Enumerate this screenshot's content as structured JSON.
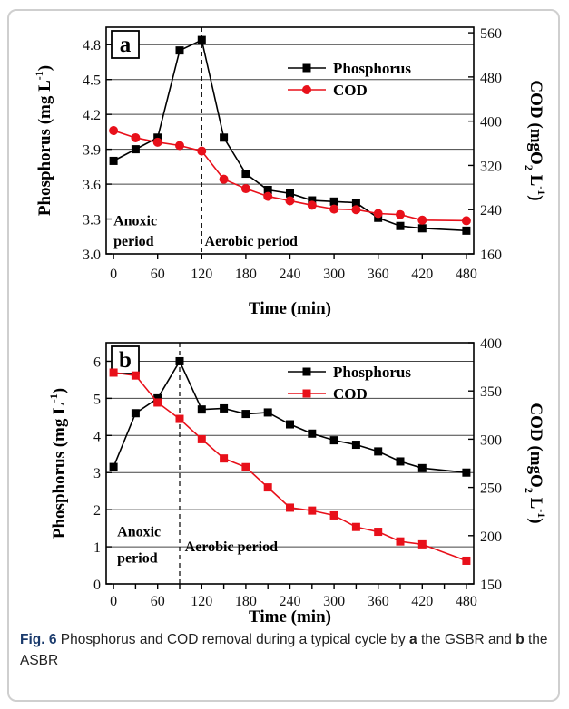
{
  "figure": {
    "caption_label": "Fig. 6",
    "caption_parts": [
      " Phosphorus and COD removal during a typical cycle by ",
      "a",
      " the GSBR and ",
      "b",
      " the ASBR"
    ]
  },
  "chart_data": [
    {
      "type": "line",
      "panel_label": "a",
      "xlabel": "Time (min)",
      "ylabel": "Phosphorus (mg L",
      "ylabel_sup": "-1",
      "ylabel_close": ")",
      "y2label": "COD (mgO",
      "y2label_sub": "2",
      "y2label_mid": " L",
      "y2label_sup": "-1",
      "y2label_close": ")",
      "xlim": [
        -10,
        490
      ],
      "ylim": [
        3.0,
        4.95
      ],
      "y2lim": [
        160,
        570
      ],
      "xticks": [
        0,
        60,
        120,
        180,
        240,
        300,
        360,
        420,
        480
      ],
      "yticks": [
        3.0,
        3.3,
        3.6,
        3.9,
        4.2,
        4.5,
        4.8
      ],
      "y2ticks": [
        160,
        240,
        320,
        400,
        480,
        560
      ],
      "grid": "horizontal",
      "legend": "top-right",
      "divider_x": 120,
      "annotations": [
        {
          "text": "Anoxic",
          "x": 0,
          "y": 3.245
        },
        {
          "text": "period",
          "x": 0,
          "y": 3.07
        },
        {
          "text": "Aerobic period",
          "x": 124,
          "y": 3.07
        }
      ],
      "series": [
        {
          "name": "Phosphorus",
          "axis": "left",
          "marker": "square",
          "color": "#000000",
          "x": [
            0,
            30,
            60,
            90,
            120,
            150,
            180,
            210,
            240,
            270,
            300,
            330,
            360,
            390,
            420,
            480
          ],
          "y": [
            3.8,
            3.9,
            4.0,
            4.75,
            4.84,
            4.0,
            3.69,
            3.55,
            3.52,
            3.46,
            3.45,
            3.44,
            3.31,
            3.24,
            3.22,
            3.2
          ]
        },
        {
          "name": "COD",
          "axis": "right",
          "marker": "circle",
          "color": "#e8101a",
          "x": [
            0,
            30,
            60,
            90,
            120,
            150,
            180,
            210,
            240,
            270,
            300,
            330,
            360,
            390,
            420,
            480
          ],
          "y": [
            383,
            370,
            362,
            356,
            346,
            295,
            278,
            264,
            256,
            248,
            241,
            240,
            233,
            231,
            221,
            220
          ]
        }
      ]
    },
    {
      "type": "line",
      "panel_label": "b",
      "xlabel": "Time (min)",
      "ylabel": "Phosphorus (mg L",
      "ylabel_sup": "-1",
      "ylabel_close": ")",
      "y2label": "COD (mgO",
      "y2label_sub": "2",
      "y2label_mid": " L",
      "y2label_sup": "-1",
      "y2label_close": ")",
      "xlim": [
        -10,
        490
      ],
      "ylim": [
        0,
        6.5
      ],
      "y2lim": [
        150,
        400
      ],
      "xticks": [
        0,
        30,
        60,
        90,
        120,
        150,
        180,
        210,
        240,
        270,
        300,
        330,
        360,
        390,
        420,
        450,
        480
      ],
      "xtick_labels": [
        "0",
        "",
        "60",
        "",
        "120",
        "",
        "180",
        "",
        "240",
        "",
        "300",
        "",
        "360",
        "",
        "420",
        "",
        "480"
      ],
      "yticks": [
        0,
        1,
        2,
        3,
        4,
        5,
        6
      ],
      "y2ticks": [
        150,
        200,
        250,
        300,
        350,
        400
      ],
      "grid": "horizontal",
      "legend": "top-right",
      "divider_x": 90,
      "annotations": [
        {
          "text": "Anoxic",
          "x": 5,
          "y": 1.28
        },
        {
          "text": "period",
          "x": 5,
          "y": 0.58
        },
        {
          "text": "Aerobic period",
          "x": 97,
          "y": 0.88
        }
      ],
      "series": [
        {
          "name": "Phosphorus",
          "axis": "left",
          "marker": "square",
          "color": "#000000",
          "x": [
            0,
            30,
            60,
            90,
            120,
            150,
            180,
            210,
            240,
            270,
            300,
            330,
            360,
            390,
            420,
            480
          ],
          "y": [
            3.15,
            4.6,
            5.0,
            6.0,
            4.7,
            4.73,
            4.58,
            4.62,
            4.3,
            4.05,
            3.87,
            3.75,
            3.57,
            3.3,
            3.12,
            3.0
          ]
        },
        {
          "name": "COD",
          "axis": "right",
          "marker": "square",
          "color": "#e8101a",
          "x": [
            0,
            30,
            60,
            90,
            120,
            150,
            180,
            210,
            240,
            270,
            300,
            330,
            360,
            390,
            420,
            480
          ],
          "y": [
            369,
            366,
            338,
            321,
            300,
            280,
            271,
            250,
            229,
            226,
            221,
            209,
            204,
            194,
            191,
            174
          ]
        }
      ]
    }
  ]
}
